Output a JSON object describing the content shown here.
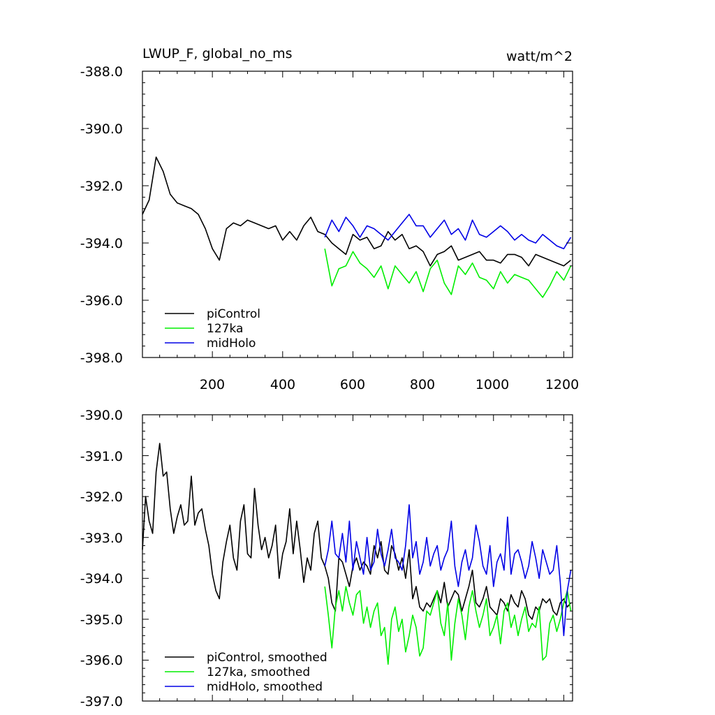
{
  "figure": {
    "left_title": "LWUP_F, global_no_ms",
    "right_title": "watt/m^2"
  },
  "colors": {
    "piControl": "#000000",
    "127ka": "#00ee00",
    "midHolo": "#0000e6"
  },
  "chart_data": [
    {
      "type": "line",
      "name": "annual",
      "ylim": [
        -398.0,
        -388.0
      ],
      "xlim": [
        1,
        1225
      ],
      "y_ticks": [
        "-388.0",
        "-390.0",
        "-392.0",
        "-394.0",
        "-396.0",
        "-398.0"
      ],
      "x_ticks": [
        "200",
        "400",
        "600",
        "800",
        "1000",
        "1200"
      ],
      "legend": [
        "piControl",
        "127ka",
        "midHolo"
      ],
      "series": [
        {
          "name": "piControl",
          "x": [
            1,
            20,
            40,
            60,
            80,
            100,
            120,
            140,
            160,
            180,
            200,
            220,
            240,
            260,
            280,
            300,
            320,
            340,
            360,
            380,
            400,
            420,
            440,
            460,
            480,
            500,
            520,
            540,
            560,
            580,
            600,
            620,
            640,
            660,
            680,
            700,
            720,
            740,
            760,
            780,
            800,
            820,
            840,
            860,
            880,
            900,
            920,
            940,
            960,
            980,
            1000,
            1020,
            1040,
            1060,
            1080,
            1100,
            1120,
            1140,
            1160,
            1180,
            1200,
            1220
          ],
          "values": [
            -393.0,
            -392.5,
            -391.0,
            -391.5,
            -392.3,
            -392.6,
            -392.7,
            -392.8,
            -393.0,
            -393.5,
            -394.2,
            -394.6,
            -393.5,
            -393.3,
            -393.4,
            -393.2,
            -393.3,
            -393.4,
            -393.5,
            -393.4,
            -393.9,
            -393.6,
            -393.9,
            -393.4,
            -393.1,
            -393.6,
            -393.7,
            -394.0,
            -394.2,
            -394.4,
            -393.7,
            -393.9,
            -393.8,
            -394.2,
            -394.1,
            -393.6,
            -393.9,
            -393.7,
            -394.2,
            -394.1,
            -394.3,
            -394.8,
            -394.4,
            -394.3,
            -394.1,
            -394.6,
            -394.5,
            -394.4,
            -394.3,
            -394.6,
            -394.6,
            -394.7,
            -394.4,
            -394.4,
            -394.5,
            -394.8,
            -394.4,
            -394.5,
            -394.6,
            -394.7,
            -394.8,
            -394.6
          ]
        },
        {
          "name": "127ka",
          "x": [
            520,
            540,
            560,
            580,
            600,
            620,
            640,
            660,
            680,
            700,
            720,
            740,
            760,
            780,
            800,
            820,
            840,
            860,
            880,
            900,
            920,
            940,
            960,
            980,
            1000,
            1020,
            1040,
            1060,
            1080,
            1100,
            1120,
            1140,
            1160,
            1180,
            1200,
            1220
          ],
          "values": [
            -394.2,
            -395.5,
            -394.9,
            -394.8,
            -394.3,
            -394.7,
            -394.9,
            -395.2,
            -394.8,
            -395.6,
            -394.8,
            -395.1,
            -395.4,
            -395.0,
            -395.7,
            -394.9,
            -394.6,
            -395.4,
            -395.8,
            -394.8,
            -395.1,
            -394.7,
            -395.2,
            -395.3,
            -395.6,
            -395.0,
            -395.4,
            -395.1,
            -395.2,
            -395.3,
            -395.6,
            -395.9,
            -395.5,
            -395.0,
            -395.3,
            -394.8
          ]
        },
        {
          "name": "midHolo",
          "x": [
            520,
            540,
            560,
            580,
            600,
            620,
            640,
            660,
            680,
            700,
            720,
            740,
            760,
            780,
            800,
            820,
            840,
            860,
            880,
            900,
            920,
            940,
            960,
            980,
            1000,
            1020,
            1040,
            1060,
            1080,
            1100,
            1120,
            1140,
            1160,
            1180,
            1200,
            1220
          ],
          "values": [
            -393.8,
            -393.2,
            -393.6,
            -393.1,
            -393.4,
            -393.8,
            -393.4,
            -393.5,
            -393.7,
            -393.9,
            -393.6,
            -393.3,
            -393.0,
            -393.4,
            -393.4,
            -393.8,
            -393.5,
            -393.2,
            -393.7,
            -393.5,
            -393.9,
            -393.2,
            -393.7,
            -393.8,
            -393.6,
            -393.4,
            -393.6,
            -393.9,
            -393.7,
            -393.9,
            -394.0,
            -393.7,
            -393.9,
            -394.1,
            -394.2,
            -393.8
          ]
        }
      ]
    },
    {
      "type": "line",
      "name": "smoothed",
      "ylim": [
        -397.0,
        -390.0
      ],
      "xlim": [
        1,
        1225
      ],
      "y_ticks": [
        "-390.0",
        "-391.0",
        "-392.0",
        "-393.0",
        "-394.0",
        "-395.0",
        "-396.0",
        "-397.0"
      ],
      "x_ticks": [],
      "legend": [
        "piControl, smoothed",
        "127ka, smoothed",
        "midHolo, smoothed"
      ],
      "series": [
        {
          "name": "piControl, smoothed",
          "x": [
            1,
            10,
            20,
            30,
            40,
            50,
            60,
            70,
            80,
            90,
            100,
            110,
            120,
            130,
            140,
            150,
            160,
            170,
            180,
            190,
            200,
            210,
            220,
            230,
            240,
            250,
            260,
            270,
            280,
            290,
            300,
            310,
            320,
            330,
            340,
            350,
            360,
            370,
            380,
            390,
            400,
            410,
            420,
            430,
            440,
            450,
            460,
            470,
            480,
            490,
            500,
            510,
            520,
            530,
            540,
            550,
            560,
            570,
            580,
            590,
            600,
            610,
            620,
            630,
            640,
            650,
            660,
            670,
            680,
            690,
            700,
            710,
            720,
            730,
            740,
            750,
            760,
            770,
            780,
            790,
            800,
            810,
            820,
            830,
            840,
            850,
            860,
            870,
            880,
            890,
            900,
            910,
            920,
            930,
            940,
            950,
            960,
            970,
            980,
            990,
            1000,
            1010,
            1020,
            1030,
            1040,
            1050,
            1060,
            1070,
            1080,
            1090,
            1100,
            1110,
            1120,
            1130,
            1140,
            1150,
            1160,
            1170,
            1180,
            1190,
            1200,
            1210,
            1220
          ],
          "values": [
            -393.3,
            -392.0,
            -392.6,
            -392.9,
            -391.4,
            -390.7,
            -391.5,
            -391.4,
            -392.3,
            -392.9,
            -392.5,
            -392.2,
            -392.7,
            -392.6,
            -391.5,
            -392.7,
            -392.4,
            -392.3,
            -392.8,
            -393.2,
            -393.9,
            -394.3,
            -394.5,
            -393.6,
            -393.1,
            -392.7,
            -393.5,
            -393.8,
            -392.6,
            -392.2,
            -393.4,
            -393.5,
            -391.8,
            -392.7,
            -393.3,
            -393.0,
            -393.5,
            -393.2,
            -392.7,
            -394.0,
            -393.4,
            -393.1,
            -392.3,
            -393.4,
            -392.6,
            -393.3,
            -394.1,
            -393.5,
            -393.8,
            -392.9,
            -392.6,
            -393.5,
            -393.7,
            -394.0,
            -394.6,
            -394.8,
            -393.5,
            -393.6,
            -393.9,
            -394.2,
            -393.7,
            -393.5,
            -393.8,
            -393.6,
            -393.7,
            -393.9,
            -393.2,
            -393.5,
            -393.1,
            -393.8,
            -393.9,
            -393.2,
            -393.4,
            -393.8,
            -393.5,
            -394.0,
            -393.3,
            -394.5,
            -394.2,
            -394.7,
            -394.8,
            -394.6,
            -394.7,
            -394.5,
            -394.3,
            -394.6,
            -394.1,
            -394.7,
            -394.5,
            -394.3,
            -394.4,
            -394.8,
            -394.5,
            -394.2,
            -393.8,
            -394.6,
            -394.7,
            -394.5,
            -394.2,
            -394.7,
            -394.8,
            -394.9,
            -394.5,
            -394.6,
            -394.8,
            -394.4,
            -394.6,
            -394.7,
            -394.3,
            -394.5,
            -394.9,
            -395.0,
            -394.7,
            -394.8,
            -394.5,
            -394.6,
            -394.5,
            -394.8,
            -394.9,
            -394.6,
            -394.5,
            -394.7,
            -394.6
          ]
        },
        {
          "name": "127ka, smoothed",
          "x": [
            520,
            530,
            540,
            550,
            560,
            570,
            580,
            590,
            600,
            610,
            620,
            630,
            640,
            650,
            660,
            670,
            680,
            690,
            700,
            710,
            720,
            730,
            740,
            750,
            760,
            770,
            780,
            790,
            800,
            810,
            820,
            830,
            840,
            850,
            860,
            870,
            880,
            890,
            900,
            910,
            920,
            930,
            940,
            950,
            960,
            970,
            980,
            990,
            1000,
            1010,
            1020,
            1030,
            1040,
            1050,
            1060,
            1070,
            1080,
            1090,
            1100,
            1110,
            1120,
            1130,
            1140,
            1150,
            1160,
            1170,
            1180,
            1190,
            1200,
            1210,
            1220
          ],
          "values": [
            -394.2,
            -394.9,
            -395.7,
            -394.7,
            -394.3,
            -394.8,
            -394.2,
            -394.6,
            -394.9,
            -394.4,
            -394.3,
            -395.1,
            -394.7,
            -395.2,
            -394.8,
            -394.6,
            -395.4,
            -395.2,
            -396.1,
            -395.0,
            -394.7,
            -395.3,
            -395.0,
            -395.8,
            -395.4,
            -394.9,
            -395.2,
            -395.9,
            -395.7,
            -394.8,
            -394.9,
            -394.6,
            -394.3,
            -395.1,
            -395.4,
            -394.6,
            -396.0,
            -395.1,
            -394.5,
            -394.9,
            -395.5,
            -394.7,
            -394.3,
            -394.8,
            -395.2,
            -394.9,
            -394.5,
            -395.4,
            -395.2,
            -394.9,
            -395.6,
            -394.8,
            -394.6,
            -395.2,
            -394.9,
            -395.4,
            -395.0,
            -394.7,
            -395.3,
            -395.1,
            -395.2,
            -394.7,
            -396.0,
            -395.9,
            -395.1,
            -394.9,
            -395.3,
            -395.0,
            -394.6,
            -394.3,
            -394.8
          ]
        },
        {
          "name": "midHolo, smoothed",
          "x": [
            520,
            530,
            540,
            550,
            560,
            570,
            580,
            590,
            600,
            610,
            620,
            630,
            640,
            650,
            660,
            670,
            680,
            690,
            700,
            710,
            720,
            730,
            740,
            750,
            760,
            770,
            780,
            790,
            800,
            810,
            820,
            830,
            840,
            850,
            860,
            870,
            880,
            890,
            900,
            910,
            920,
            930,
            940,
            950,
            960,
            970,
            980,
            990,
            1000,
            1010,
            1020,
            1030,
            1040,
            1050,
            1060,
            1070,
            1080,
            1090,
            1100,
            1110,
            1120,
            1130,
            1140,
            1150,
            1160,
            1170,
            1180,
            1190,
            1200,
            1210,
            1220
          ],
          "values": [
            -393.7,
            -393.3,
            -392.6,
            -393.4,
            -393.5,
            -392.9,
            -393.6,
            -392.6,
            -393.8,
            -393.1,
            -393.5,
            -393.9,
            -393.0,
            -393.8,
            -393.6,
            -392.8,
            -393.4,
            -393.7,
            -393.3,
            -392.8,
            -393.5,
            -393.6,
            -393.8,
            -393.2,
            -392.2,
            -393.5,
            -393.1,
            -393.9,
            -393.6,
            -393.0,
            -393.7,
            -393.4,
            -393.2,
            -393.8,
            -393.5,
            -393.3,
            -392.6,
            -393.7,
            -394.2,
            -393.6,
            -393.3,
            -393.8,
            -393.5,
            -392.7,
            -393.1,
            -393.7,
            -393.9,
            -393.2,
            -394.2,
            -393.6,
            -393.4,
            -393.8,
            -392.5,
            -393.9,
            -393.4,
            -393.3,
            -393.6,
            -394.0,
            -393.7,
            -393.1,
            -393.5,
            -394.0,
            -393.3,
            -393.6,
            -393.9,
            -393.8,
            -393.2,
            -394.1,
            -395.4,
            -394.3,
            -393.8
          ]
        }
      ]
    }
  ]
}
